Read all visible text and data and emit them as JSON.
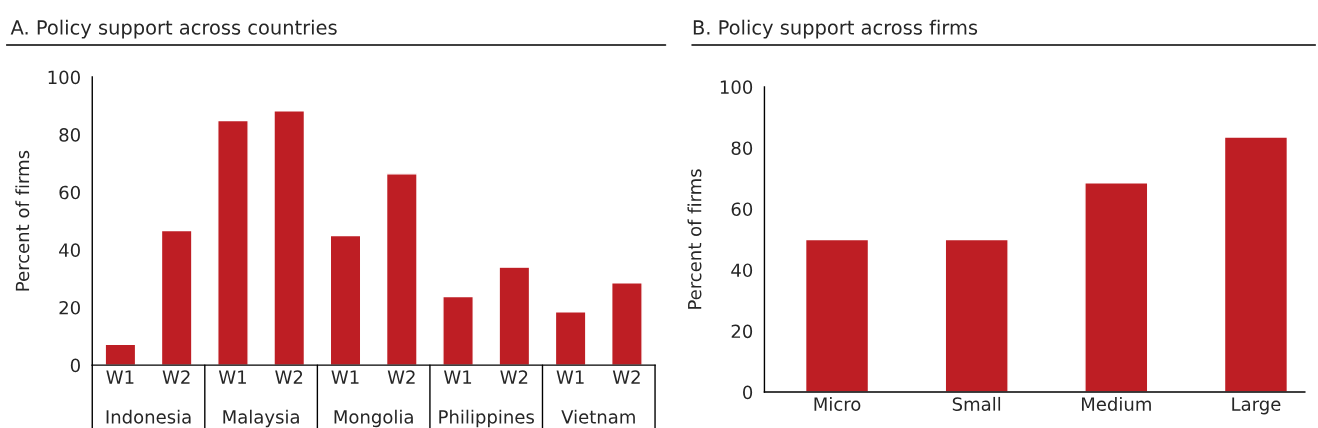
{
  "chart_data": [
    {
      "type": "bar",
      "title": "A. Policy support across countries",
      "ylabel": "Percent of firms",
      "categories": [
        "Indonesia",
        "Malaysia",
        "Mongolia",
        "Philippines",
        "Vietnam"
      ],
      "series": [
        {
          "name": "W1",
          "color": "#be1e24",
          "values": [
            7.2,
            84.9,
            45,
            23.8,
            18.5
          ]
        },
        {
          "name": "W2",
          "color": "#be1e24",
          "values": [
            46.7,
            88.3,
            66.4,
            34,
            28.6
          ]
        }
      ],
      "ylim": [
        0,
        100
      ],
      "yticks": [
        0,
        20,
        40,
        60,
        80,
        100
      ],
      "grid": false,
      "legend": false
    },
    {
      "type": "bar",
      "title": "B. Policy support across firms",
      "ylabel": "Percent of firms",
      "categories": [
        "Micro",
        "Small",
        "Medium",
        "Large"
      ],
      "values": [
        50,
        50,
        68.6,
        83.6
      ],
      "color": "#be1e24",
      "ylim": [
        0,
        100
      ],
      "yticks": [
        0,
        20,
        40,
        60,
        80,
        100
      ],
      "grid": false,
      "legend": false
    }
  ]
}
